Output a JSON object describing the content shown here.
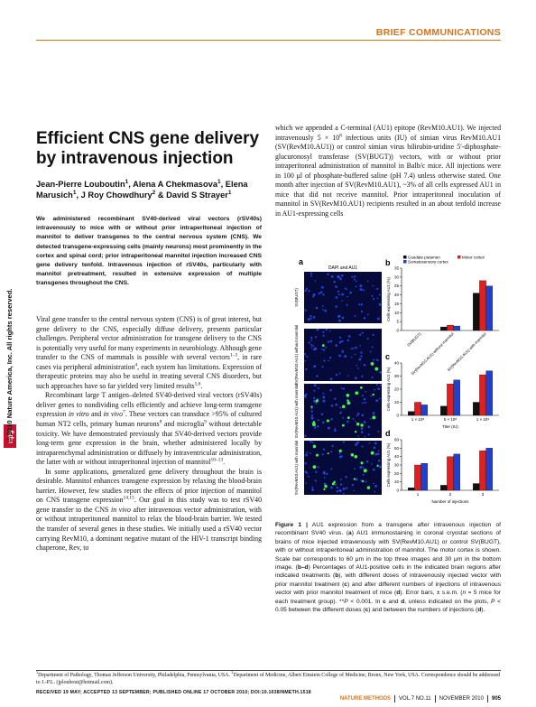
{
  "header": {
    "section": "BRIEF COMMUNICATIONS"
  },
  "side": {
    "copyright": "© 2010 Nature America, Inc. All rights reserved.",
    "logo": "npg"
  },
  "article": {
    "title": "Efficient CNS gene delivery by intravenous injection",
    "authors": [
      "Jean-Pierre Louboutin",
      {
        "sup": "1"
      },
      ", Alena A Chekmasova",
      {
        "sup": "1"
      },
      ", Elena Marusich",
      {
        "sup": "1"
      },
      ", J Roy Chowdhury",
      {
        "sup": "2"
      },
      " & David S Strayer",
      {
        "sup": "1"
      }
    ],
    "abstract": "We administered recombinant SV40-derived viral vectors (rSV40s) intravenously to mice with or without prior intraperitoneal injection of mannitol to deliver transgenes to the central nervous system (CNS). We detected transgene-expressing cells (mainly neurons) most prominently in the cortex and spinal cord; prior intraperitoneal mannitol injection increased CNS gene delivery tenfold. Intravenous injection of rSV40s, particularly with mannitol pretreatment, resulted in extensive expression of multiple transgenes throughout the CNS.",
    "paragraphs": [
      [
        "Viral gene transfer to the central nervous system (CNS) is of great interest, but gene delivery to the CNS, especially diffuse delivery, presents particular challenges. Peripheral vector administration for transgene delivery to the CNS is potentially very useful for many experiments in neurobiology. Although gene transfer to the CNS of mammals is possible with several vectors",
        {
          "sup": "1–3"
        },
        ", in rare cases via peripheral administration",
        {
          "sup": "4"
        },
        ", each system has limitations. Expression of therapeutic proteins may also be useful in treating several CNS disorders, but such approaches have so far yielded very limited results",
        {
          "sup": "5,6"
        },
        "."
      ],
      [
        "Recombinant large T antigen–deleted SV40-derived viral vectors (rSV40s) deliver genes to nondividing cells efficiently and achieve long-term transgene expression ",
        {
          "i": "in vitro"
        },
        " and ",
        {
          "i": "in vivo"
        },
        {
          "sup": "7"
        },
        ". These vectors can transduce >95% of cultured human NT2 cells, primary human neurons",
        {
          "sup": "8"
        },
        " and microglia",
        {
          "sup": "9"
        },
        " without detectable toxicity. We have demonstrated previously that SV40-derived vectors provide long-term gene expression in the brain, whether administered locally by intraparenchymal administration or diffusely by intraventricular administration, the latter with or without intraperitoneal injection of mannitol",
        {
          "sup": "10–13"
        },
        "."
      ],
      [
        "In some applications, generalized gene delivery throughout the brain is desirable. Mannitol enhances transgene expression by relaxing the blood-brain barrier. However, few studies report the effects of prior injection of mannitol on CNS transgene expression",
        {
          "sup": "14,15"
        },
        ". Our goal in this study was to test rSV40 gene transfer to the CNS ",
        {
          "i": "in vivo"
        },
        " after intravenous vector administration, with or without intraperitoneal mannitol to relax the blood-brain barrier. We tested the transfer of several genes in these studies. We initially used a rSV40 vector carrying RevM10, a dominant negative mutant of the HIV-1 transcript binding chaperone, Rev, to"
      ]
    ],
    "right_column": [
      "which we appended a C-terminal (AU1) epitope (RevM10.AU1). We injected intravenously 5 × 10",
      {
        "sup": "8"
      },
      " infectious units (IU) of simian virus RevM10.AU1 (SV(RevM10.AU1)) or control simian virus bilirubin-uridine 5′-diphosphate-glucuronosyl transferase (SV(BUGT)) vectors, with or without prior intraperitoneal administration of mannitol in Balb/c mice. All injections were in 100 μl of phosphate-buffered saline (pH 7.4) unless otherwise stated. One month after injection of SV(RevM10.AU1), ~3% of all cells expressed AU1 in mice that did not receive mannitol. Prior intraperitoneal inoculation of mannitol in SV(RevM10.AU1) recipients resulted in an about tenfold increase in AU1-expressing cells"
    ]
  },
  "figure": {
    "panel_a": {
      "label": "a",
      "heading": "DAPI and AU1",
      "rows": [
        "SV(BUGT)",
        "SV(RevM10.AU1) without mannitol",
        "SV(RevM10.AU1) with mannitol",
        "SV(RevM10.AU1) with mannitol"
      ]
    },
    "charts": [
      {
        "type": "bar",
        "label": "b",
        "ylabel": "Cells expressing AU1 (%)",
        "categories": [
          "SV(BUGT)",
          "SV(RevM10.AU1) without mannitol",
          "SV(RevM10.AU1) with mannitol"
        ],
        "series": [
          {
            "name": "Caudate putamen",
            "color": "#111111",
            "values": [
              0,
              2,
              21
            ]
          },
          {
            "name": "Motor cortex",
            "color": "#e02020",
            "values": [
              0,
              3,
              28
            ]
          },
          {
            "name": "Somatosensory cortex",
            "color": "#2040d0",
            "values": [
              0,
              2.5,
              25
            ]
          }
        ],
        "ylim": [
          0,
          35
        ],
        "yticks": [
          0,
          5,
          10,
          15,
          20,
          25,
          30,
          35
        ]
      },
      {
        "type": "bar",
        "label": "c",
        "ylabel": "Cells expressing AU1 (%)",
        "xlabel": "Titer (IU)",
        "categories": [
          "1 × 10⁸",
          "5 × 10⁸",
          "1 × 10⁹"
        ],
        "series": [
          {
            "name": "Caudate putamen",
            "color": "#111111",
            "values": [
              3,
              7,
              10
            ]
          },
          {
            "name": "Motor cortex",
            "color": "#e02020",
            "values": [
              10,
              24,
              31
            ]
          },
          {
            "name": "Somatosensory cortex",
            "color": "#2040d0",
            "values": [
              8,
              27,
              34
            ]
          }
        ],
        "ylim": [
          0,
          40
        ],
        "yticks": [
          0,
          10,
          20,
          30,
          40
        ]
      },
      {
        "type": "bar",
        "label": "d",
        "ylabel": "Cells expressing AU1 (%)",
        "xlabel": "Number of injections",
        "categories": [
          "1",
          "2",
          "3"
        ],
        "series": [
          {
            "name": "Caudate putamen",
            "color": "#111111",
            "values": [
              3,
              6,
              8
            ]
          },
          {
            "name": "Motor cortex",
            "color": "#e02020",
            "values": [
              30,
              40,
              47
            ]
          },
          {
            "name": "Somatosensory cortex",
            "color": "#2040d0",
            "values": [
              32,
              43,
              50
            ]
          }
        ],
        "ylim": [
          0,
          60
        ],
        "yticks": [
          0,
          10,
          20,
          30,
          40,
          50,
          60
        ]
      }
    ],
    "caption": [
      {
        "b": "Figure 1 |"
      },
      " AU1 expression from a transgene after intravenous injection of recombinant SV40 virus. (",
      {
        "b": "a"
      },
      ") AU1 immunostaining in coronal cryostat sections of brains of mice injected intravenously with SV(RevM10.AU1) or control SV(BUGT), with or without intraperitoneal administration of mannitol. The motor cortex is shown. Scale bar corresponds to 60 μm in the top three images and 30 μm in the bottom image. (",
      {
        "b": "b–d"
      },
      ") Percentages of AU1-positive cells in the indicated brain regions after indicated treatments (",
      {
        "b": "b"
      },
      "), with different doses of intravenously injected vector with prior mannitol treatment (",
      {
        "b": "c"
      },
      ") and after different numbers of injections of intravenous vector with prior mannitol treatment of mice (",
      {
        "b": "d"
      },
      "). Error bars, ± s.e.m. (",
      {
        "i": "n"
      },
      " = 5 mice for each treatment group). **",
      {
        "i": "P"
      },
      " < 0.001. In ",
      {
        "b": "c"
      },
      " and ",
      {
        "b": "d"
      },
      ", unless indicated on the plots, ",
      {
        "i": "P"
      },
      " < 0.05 between the different doses (",
      {
        "b": "c"
      },
      ") and between the numbers of injections (",
      {
        "b": "d"
      },
      ")."
    ]
  },
  "footnote": {
    "affiliations": [
      {
        "sup": "1"
      },
      "Department of Pathology, Thomas Jefferson University, Philadelphia, Pennsylvania, USA. ",
      {
        "sup": "2"
      },
      "Department of Medicine, Albert Einstein College of Medicine, Bronx, New York, USA. Correspondence should be addressed to J.-P.L. (jploubout@hotmail.com)."
    ],
    "received": "RECEIVED 19 MAY; ACCEPTED 13 SEPTEMBER; PUBLISHED ONLINE 17 OCTOBER 2010; DOI:10.1038/NMETH.1518"
  },
  "footer": {
    "journal": "NATURE METHODS",
    "volume": "VOL.7 NO.11",
    "date": "NOVEMBER 2010",
    "page": 905
  }
}
